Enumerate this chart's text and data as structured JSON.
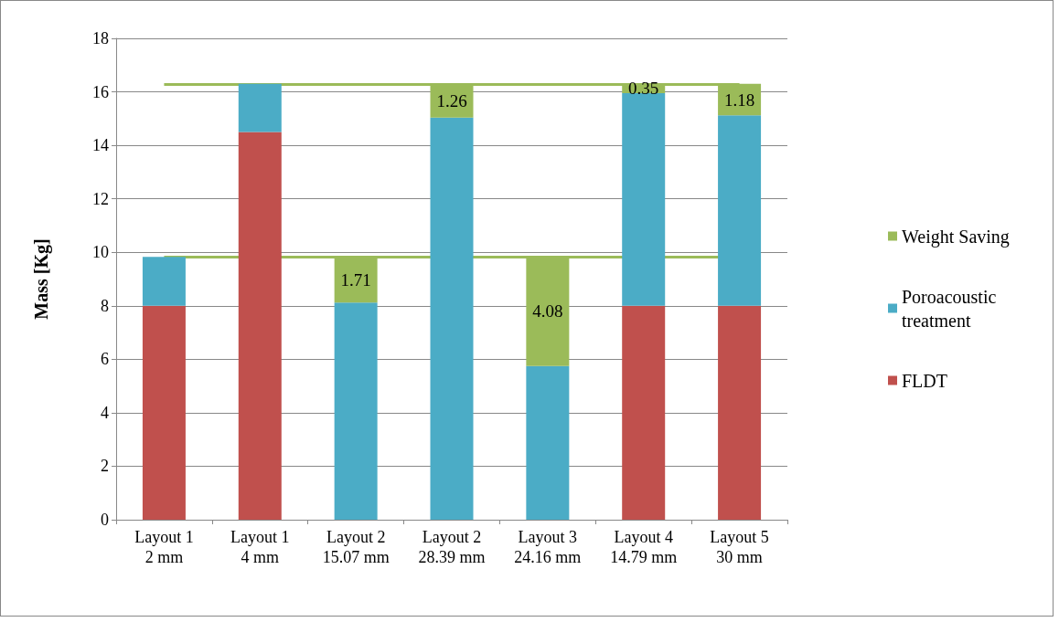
{
  "chart_data": {
    "type": "bar",
    "stacked": true,
    "ylabel": "Mass [Kg]",
    "categories": [
      "Layout 1\n2 mm",
      "Layout 1\n4 mm",
      "Layout 2\n15.07 mm",
      "Layout 2\n28.39 mm",
      "Layout 3\n24.16 mm",
      "Layout 4\n14.79 mm",
      "Layout 5\n30 mm"
    ],
    "series": [
      {
        "name": "FLDT",
        "color": "#c0504d",
        "values": [
          8,
          14.5,
          null,
          null,
          null,
          8,
          8
        ]
      },
      {
        "name": "Poroacoustic treatment",
        "color": "#4bacc6",
        "values": [
          1.83,
          1.8,
          8.12,
          15.04,
          5.75,
          7.95,
          7.12
        ]
      },
      {
        "name": "Weight Saving",
        "color": "#9bbb59",
        "values": [
          null,
          null,
          1.71,
          1.26,
          4.08,
          0.35,
          1.18
        ],
        "value_labels": [
          null,
          null,
          "1.71",
          "1.26",
          "4.08",
          "0.35",
          "1.18"
        ]
      }
    ],
    "ref_lines": [
      {
        "axis": "y",
        "value": 16.3,
        "color": "#9bbb59"
      },
      {
        "axis": "y",
        "value": 9.83,
        "color": "#9bbb59"
      }
    ],
    "ylim": [
      0,
      18
    ],
    "yticks": [
      0,
      2,
      4,
      6,
      8,
      10,
      12,
      14,
      16,
      18
    ],
    "grid": "y",
    "legend": "right"
  }
}
